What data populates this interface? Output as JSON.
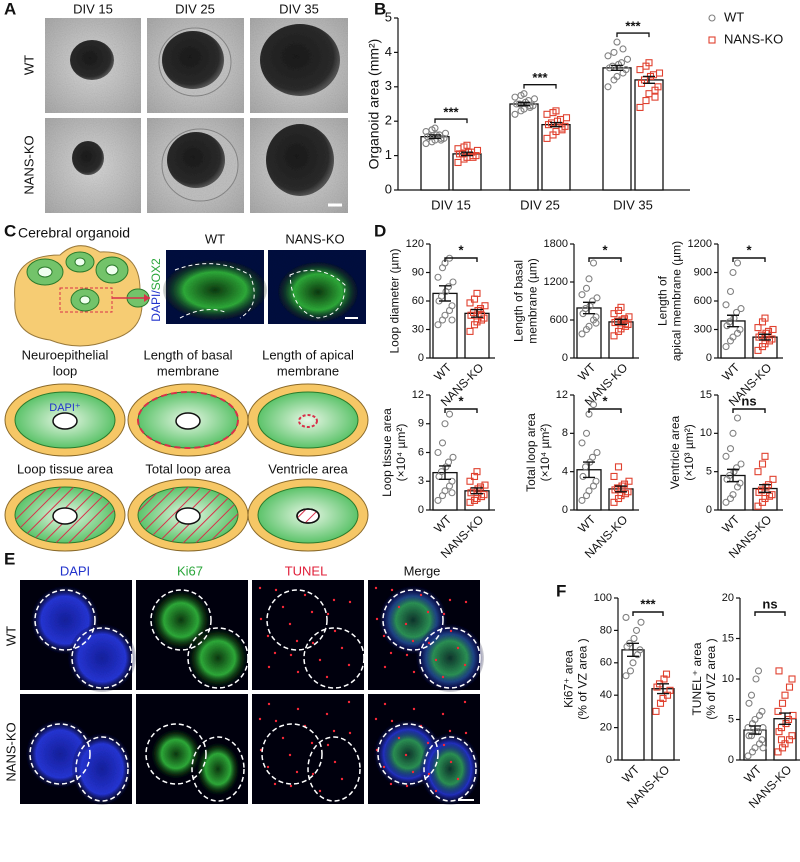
{
  "panel_labels": [
    "A",
    "B",
    "C",
    "D",
    "E",
    "F"
  ],
  "panel_a": {
    "columns": [
      "DIV 15",
      "DIV 25",
      "DIV 35"
    ],
    "rows": [
      "WT",
      "NANS-KO"
    ]
  },
  "panel_c": {
    "title": "Cerebral organoid",
    "stain": [
      "DAPI/",
      "SOX2"
    ],
    "columns": [
      "WT",
      "NANS-KO"
    ],
    "diagrams": [
      [
        "Neuroepithelial",
        "loop"
      ],
      [
        "Length of basal",
        "membrane"
      ],
      [
        "Length of apical",
        "membrane"
      ],
      [
        "Loop tissue area"
      ],
      [
        "Total loop area"
      ],
      [
        "Ventricle area"
      ]
    ],
    "marker_label": "DAPI⁺"
  },
  "panel_e": {
    "columns": [
      "DAPI",
      "Ki67",
      "TUNEL",
      "Merge"
    ],
    "rows": [
      "WT",
      "NANS-KO"
    ]
  },
  "chart_data": [
    {
      "type": "bar",
      "ylabel": [
        "Organoid area (mm²)"
      ],
      "categories": [
        "DIV 15",
        "DIV 25",
        "DIV 35"
      ],
      "ylim": [
        0,
        5
      ],
      "yticks": [
        0,
        1,
        2,
        3,
        4,
        5
      ],
      "annotations": [
        "***",
        "***",
        "***"
      ],
      "legend": "upper right",
      "series": [
        {
          "name": "WT",
          "color": "#808080",
          "marker": "circle",
          "values": [
            1.55,
            2.5,
            3.55
          ],
          "errors": [
            0.05,
            0.05,
            0.07
          ],
          "points": [
            [
              1.35,
              1.4,
              1.45,
              1.5,
              1.5,
              1.55,
              1.55,
              1.6,
              1.6,
              1.65,
              1.7,
              1.75,
              1.8,
              1.45
            ],
            [
              2.2,
              2.3,
              2.35,
              2.4,
              2.45,
              2.5,
              2.5,
              2.55,
              2.6,
              2.65,
              2.7,
              2.75,
              2.8,
              2.45
            ],
            [
              3.0,
              3.2,
              3.3,
              3.4,
              3.5,
              3.55,
              3.6,
              3.65,
              3.7,
              3.8,
              3.9,
              4.0,
              4.3,
              4.1
            ]
          ]
        },
        {
          "name": "NANS-KO",
          "color": "#e0412f",
          "marker": "square",
          "values": [
            1.05,
            1.9,
            3.2
          ],
          "errors": [
            0.05,
            0.06,
            0.1
          ],
          "points": [
            [
              0.8,
              0.9,
              0.95,
              1.0,
              1.0,
              1.05,
              1.05,
              1.1,
              1.1,
              1.15,
              1.2,
              1.25,
              1.3,
              0.95
            ],
            [
              1.5,
              1.6,
              1.7,
              1.8,
              1.85,
              1.9,
              1.95,
              2.0,
              2.05,
              2.1,
              2.2,
              2.25,
              2.3,
              1.75
            ],
            [
              2.4,
              2.6,
              2.8,
              2.9,
              3.0,
              3.1,
              3.2,
              3.3,
              3.35,
              3.4,
              3.5,
              3.6,
              3.7,
              2.7
            ]
          ]
        }
      ]
    },
    {
      "type": "bar",
      "ylabel": [
        "Loop diameter (µm)"
      ],
      "categories": [
        "WT",
        "NANS-KO"
      ],
      "colors": [
        "#808080",
        "#e0412f"
      ],
      "markers": [
        "circle",
        "square"
      ],
      "ylim": [
        0,
        120
      ],
      "yticks": [
        0,
        30,
        60,
        90,
        120
      ],
      "annotation": "*",
      "values": [
        68,
        47
      ],
      "errors": [
        8,
        4
      ],
      "points": [
        [
          35,
          40,
          45,
          50,
          55,
          60,
          65,
          70,
          75,
          80,
          85,
          95,
          100,
          105,
          40
        ],
        [
          28,
          35,
          38,
          40,
          42,
          45,
          48,
          50,
          52,
          55,
          58,
          62,
          68,
          45
        ]
      ]
    },
    {
      "type": "bar",
      "ylabel": [
        "Length of basal",
        "membrane (µm)"
      ],
      "categories": [
        "WT",
        "NANS-KO"
      ],
      "colors": [
        "#808080",
        "#e0412f"
      ],
      "markers": [
        "circle",
        "square"
      ],
      "ylim": [
        0,
        1800
      ],
      "yticks": [
        0,
        600,
        1200,
        1800
      ],
      "annotation": "*",
      "values": [
        790,
        570
      ],
      "errors": [
        90,
        40
      ],
      "points": [
        [
          380,
          450,
          500,
          600,
          650,
          700,
          780,
          820,
          900,
          950,
          1000,
          1100,
          1250,
          1500,
          550
        ],
        [
          350,
          420,
          460,
          500,
          530,
          560,
          580,
          600,
          620,
          650,
          700,
          750,
          800,
          540
        ]
      ]
    },
    {
      "type": "bar",
      "ylabel": [
        "Length of",
        "apical membrane (µm)"
      ],
      "categories": [
        "WT",
        "NANS-KO"
      ],
      "colors": [
        "#808080",
        "#e0412f"
      ],
      "markers": [
        "circle",
        "square"
      ],
      "ylim": [
        0,
        1200
      ],
      "yticks": [
        0,
        300,
        600,
        900,
        1200
      ],
      "annotation": "*",
      "values": [
        390,
        220
      ],
      "errors": [
        60,
        30
      ],
      "points": [
        [
          120,
          180,
          220,
          260,
          300,
          340,
          380,
          420,
          480,
          520,
          560,
          700,
          900,
          1000
        ],
        [
          80,
          120,
          150,
          180,
          200,
          220,
          240,
          260,
          280,
          300,
          320,
          380,
          420
        ]
      ]
    },
    {
      "type": "bar",
      "ylabel": [
        "Loop tissue area",
        "(×10⁴ µm²)"
      ],
      "categories": [
        "WT",
        "NANS-KO"
      ],
      "colors": [
        "#808080",
        "#e0412f"
      ],
      "markers": [
        "circle",
        "square"
      ],
      "ylim": [
        0,
        12
      ],
      "yticks": [
        0,
        3,
        6,
        9,
        12
      ],
      "annotation": "*",
      "values": [
        3.9,
        2.0
      ],
      "errors": [
        0.7,
        0.3
      ],
      "points": [
        [
          1,
          1.5,
          2,
          2.5,
          3,
          3.5,
          4,
          4.5,
          5,
          5.5,
          6,
          7,
          9,
          10,
          1.8
        ],
        [
          0.8,
          1,
          1.2,
          1.4,
          1.6,
          1.8,
          2,
          2.2,
          2.4,
          2.6,
          3,
          3.5,
          4
        ]
      ]
    },
    {
      "type": "bar",
      "ylabel": [
        "Total loop area",
        "(×10⁴ µm²)"
      ],
      "categories": [
        "WT",
        "NANS-KO"
      ],
      "colors": [
        "#808080",
        "#e0412f"
      ],
      "markers": [
        "circle",
        "square"
      ],
      "ylim": [
        0,
        12
      ],
      "yticks": [
        0,
        4,
        8,
        12
      ],
      "annotation": "*",
      "values": [
        4.2,
        2.2
      ],
      "errors": [
        0.8,
        0.3
      ],
      "points": [
        [
          1,
          1.5,
          2,
          2.5,
          3,
          3.5,
          4.5,
          5,
          5.5,
          6,
          7,
          8,
          10,
          11
        ],
        [
          0.8,
          1.2,
          1.5,
          1.7,
          1.9,
          2.1,
          2.3,
          2.5,
          2.7,
          3,
          3.5,
          4.5
        ]
      ]
    },
    {
      "type": "bar",
      "ylabel": [
        "Ventricle area",
        "(×10³ µm²)"
      ],
      "categories": [
        "WT",
        "NANS-KO"
      ],
      "colors": [
        "#808080",
        "#e0412f"
      ],
      "markers": [
        "circle",
        "square"
      ],
      "ylim": [
        0,
        15
      ],
      "yticks": [
        0,
        5,
        10,
        15
      ],
      "annotation": "ns",
      "values": [
        4.5,
        2.8
      ],
      "errors": [
        0.8,
        0.5
      ],
      "points": [
        [
          1,
          1.5,
          2,
          3,
          3.5,
          4,
          4.5,
          5,
          5.5,
          6,
          7,
          8,
          10,
          12
        ],
        [
          0.5,
          1,
          1.5,
          1.8,
          2,
          2.3,
          2.6,
          3,
          3.3,
          4,
          5,
          6,
          7
        ]
      ]
    },
    {
      "type": "bar",
      "ylabel": [
        "Ki67⁺ area",
        "(% of VZ area )"
      ],
      "categories": [
        "WT",
        "NANS-KO"
      ],
      "colors": [
        "#808080",
        "#e0412f"
      ],
      "markers": [
        "circle",
        "square"
      ],
      "ylim": [
        0,
        100
      ],
      "yticks": [
        0,
        20,
        40,
        60,
        80,
        100
      ],
      "annotation": "***",
      "values": [
        68,
        44
      ],
      "errors": [
        4,
        3
      ],
      "points": [
        [
          52,
          55,
          60,
          65,
          68,
          70,
          72,
          75,
          80,
          85,
          88
        ],
        [
          30,
          35,
          38,
          40,
          43,
          45,
          47,
          50,
          53
        ]
      ]
    },
    {
      "type": "bar",
      "ylabel": [
        "TUNEL⁺ area",
        "(% of VZ area )"
      ],
      "categories": [
        "WT",
        "NANS-KO"
      ],
      "colors": [
        "#808080",
        "#e0412f"
      ],
      "markers": [
        "circle",
        "square"
      ],
      "ylim": [
        0,
        20
      ],
      "yticks": [
        0,
        5,
        10,
        15,
        20
      ],
      "annotation": "ns",
      "values": [
        3.7,
        5.1
      ],
      "errors": [
        0.5,
        0.7
      ],
      "points": [
        [
          0.5,
          1,
          1.5,
          2,
          2.5,
          3,
          3,
          3.5,
          3.5,
          4,
          4,
          4.5,
          5,
          5.5,
          6,
          7,
          8,
          10,
          11,
          1.5
        ],
        [
          1,
          1.5,
          2,
          2.5,
          3,
          3.5,
          4,
          4.5,
          5,
          5.5,
          6,
          7,
          8,
          9,
          10,
          11,
          2.5
        ]
      ]
    }
  ]
}
